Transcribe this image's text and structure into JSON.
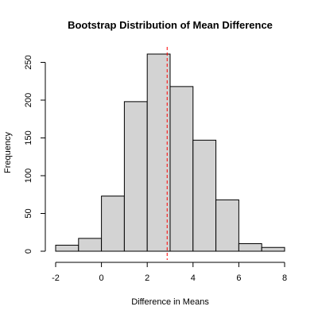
{
  "chart_data": {
    "type": "bar",
    "subtype": "histogram",
    "title": "Bootstrap Distribution of Mean Difference",
    "xlabel": "Difference in Means",
    "ylabel": "Frequency",
    "bins": [
      {
        "x0": -2,
        "x1": -1,
        "count": 8
      },
      {
        "x0": -1,
        "x1": 0,
        "count": 17
      },
      {
        "x0": 0,
        "x1": 1,
        "count": 73
      },
      {
        "x0": 1,
        "x1": 2,
        "count": 198
      },
      {
        "x0": 2,
        "x1": 3,
        "count": 261
      },
      {
        "x0": 3,
        "x1": 4,
        "count": 218
      },
      {
        "x0": 4,
        "x1": 5,
        "count": 147
      },
      {
        "x0": 5,
        "x1": 6,
        "count": 68
      },
      {
        "x0": 6,
        "x1": 7,
        "count": 10
      },
      {
        "x0": 7,
        "x1": 8,
        "count": 5
      }
    ],
    "xlim": [
      -2,
      8
    ],
    "ylim": [
      0,
      261
    ],
    "xticks": [
      "-2",
      "0",
      "2",
      "4",
      "6",
      "8"
    ],
    "yticks": [
      "0",
      "50",
      "100",
      "150",
      "200",
      "250"
    ],
    "reference_line": {
      "x": 2.87,
      "style": "dashed",
      "color": "#ff0000"
    },
    "bar_fill": "#d3d3d3"
  }
}
